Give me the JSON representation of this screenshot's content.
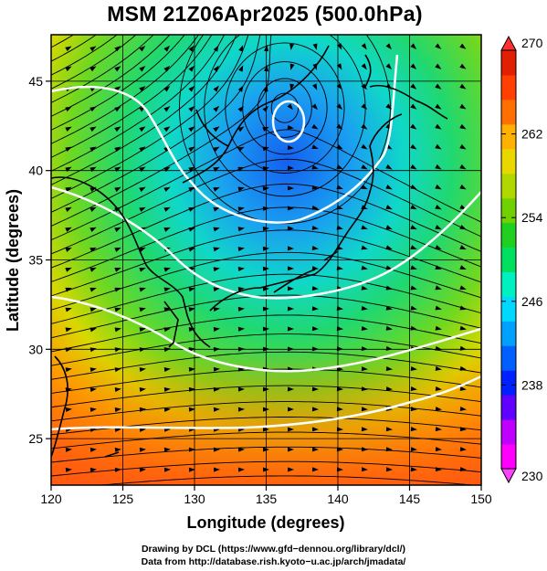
{
  "title": "MSM 21Z06Apr2025 (500.0hPa)",
  "x_axis": {
    "label": "Longitude (degrees)",
    "ticks": [
      "120",
      "125",
      "130",
      "135",
      "140",
      "145",
      "150"
    ],
    "range": [
      120,
      150
    ]
  },
  "y_axis": {
    "label": "Latitude  (degrees)",
    "ticks": [
      "25",
      "30",
      "35",
      "40",
      "45"
    ],
    "range": [
      22.4,
      47.6
    ]
  },
  "colorbar": {
    "ticks": [
      "270",
      "262",
      "254",
      "246",
      "238",
      "230"
    ],
    "min": 230,
    "max": 270,
    "colors": [
      "#ff00ff",
      "#c000ff",
      "#6000ff",
      "#0020ff",
      "#0060ff",
      "#00a0ff",
      "#00d8ff",
      "#00f0c0",
      "#00e060",
      "#20d020",
      "#70d000",
      "#b0d800",
      "#e8d800",
      "#ffb000",
      "#ff7000",
      "#ff4000",
      "#e02000"
    ]
  },
  "field_colors": {
    "cold": "#0a6cf0",
    "mid": "#20d070",
    "warm": "#ff6a10"
  },
  "credits": {
    "line1": "Drawing by DCL (https://www.gfd−dennou.org/library/dcl/)",
    "line2": "Data from http://database.rish.kyoto−u.ac.jp/arch/jmadata/"
  }
}
